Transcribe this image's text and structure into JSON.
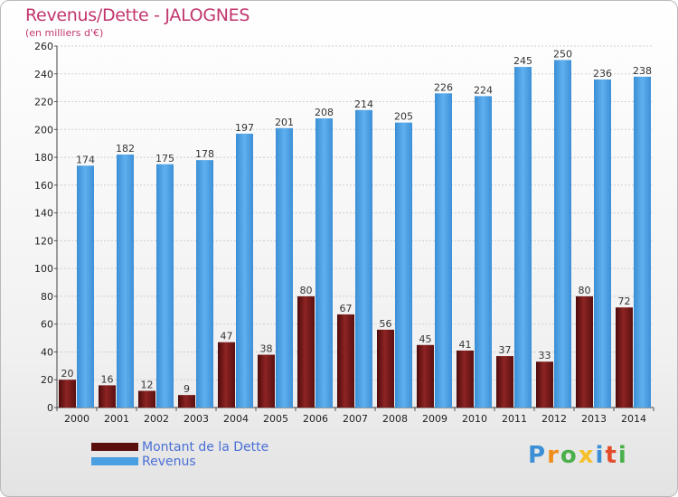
{
  "header": {
    "title": "Revenus/Dette - JALOGNES",
    "subtitle": "(en milliers d'€)"
  },
  "colors": {
    "debt": "#8b1e1e",
    "revenue": "#4a9fe3",
    "title": "#c2366e",
    "legend_text": "#4a6fd6"
  },
  "legend": {
    "items": [
      {
        "label": "Montant de la Dette",
        "color": "#5a0e0e"
      },
      {
        "label": "Revenus",
        "color": "#4a9fe3"
      }
    ]
  },
  "logo": {
    "text": "Proxiti"
  },
  "chart_data": {
    "type": "bar",
    "title": "Revenus/Dette - JALOGNES",
    "subtitle": "(en milliers d'€)",
    "categories": [
      "2000",
      "2001",
      "2002",
      "2003",
      "2004",
      "2005",
      "2006",
      "2007",
      "2008",
      "2009",
      "2010",
      "2011",
      "2012",
      "2013",
      "2014"
    ],
    "series": [
      {
        "name": "Montant de la Dette",
        "values": [
          20,
          16,
          12,
          9,
          47,
          38,
          80,
          67,
          56,
          45,
          41,
          37,
          33,
          80,
          72
        ]
      },
      {
        "name": "Revenus",
        "values": [
          174,
          182,
          175,
          178,
          197,
          201,
          208,
          214,
          205,
          226,
          224,
          245,
          250,
          236,
          238
        ]
      }
    ],
    "yticks": [
      0,
      20,
      40,
      60,
      80,
      100,
      120,
      140,
      160,
      180,
      200,
      220,
      240,
      260
    ],
    "ylim": [
      0,
      260
    ],
    "grid": true,
    "legend_position": "bottom-left"
  }
}
